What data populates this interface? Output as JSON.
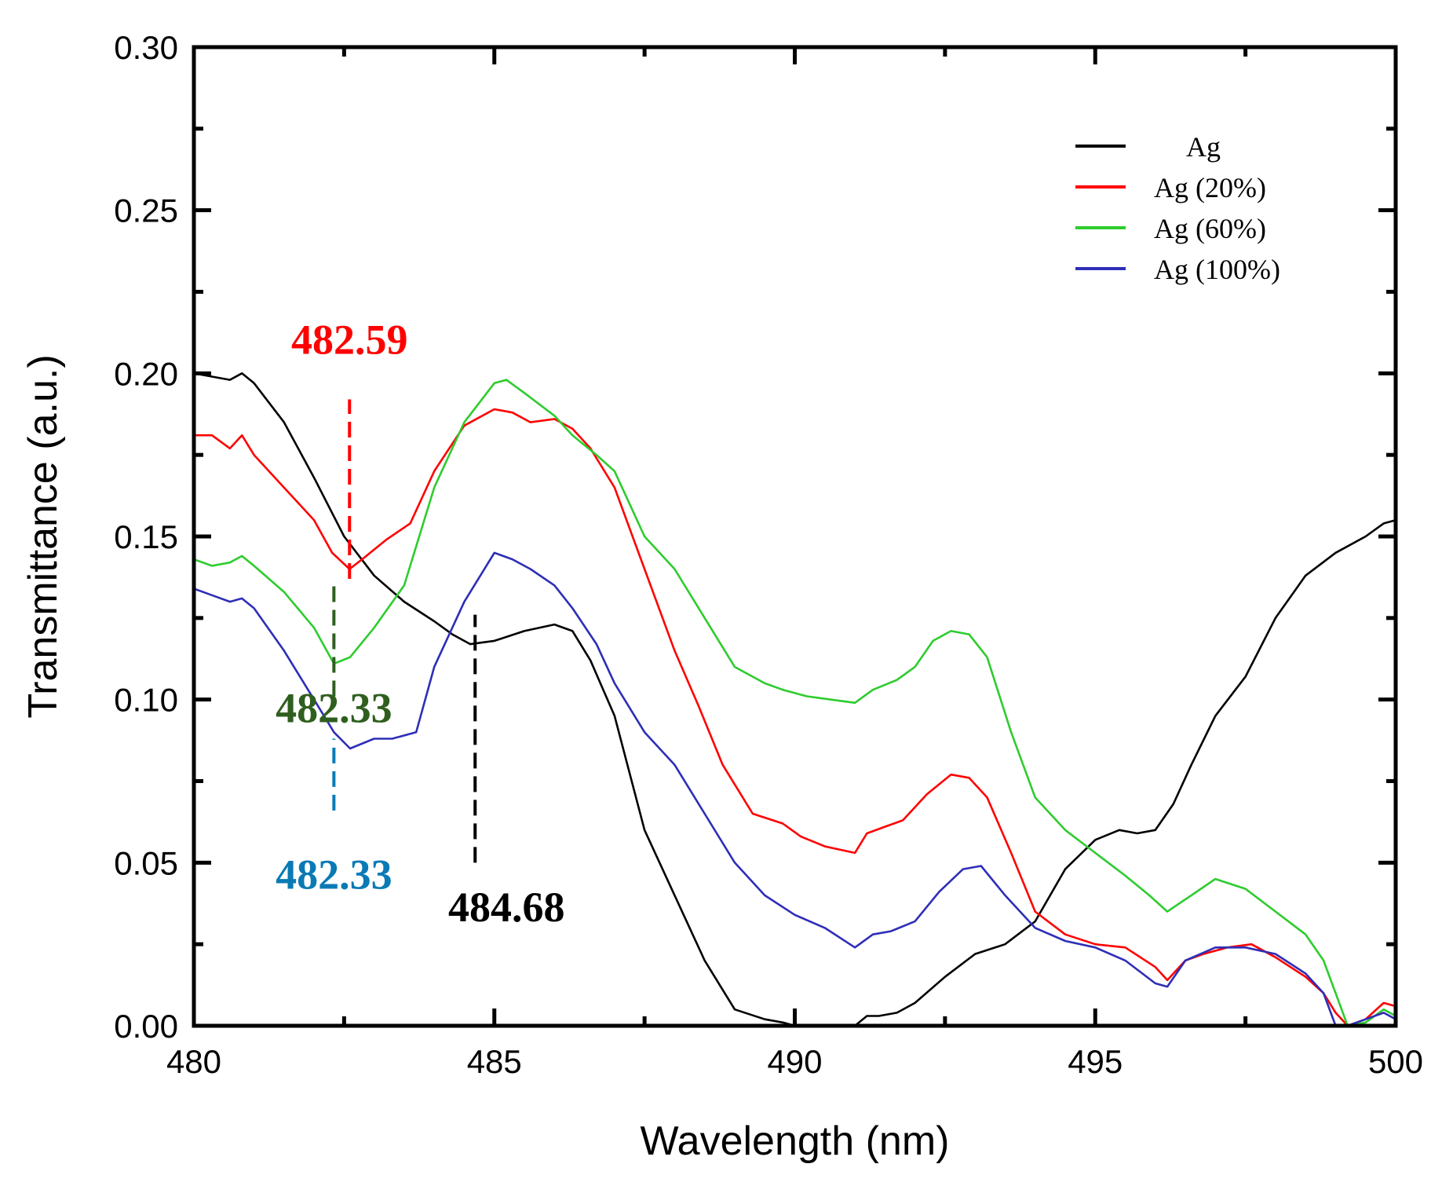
{
  "chart_data": {
    "type": "line",
    "title": "",
    "xlabel": "Wavelength (nm)",
    "ylabel": "Transmittance (a.u.)",
    "xlim": [
      480,
      500
    ],
    "ylim": [
      0.0,
      0.3
    ],
    "x_ticks": [
      480,
      485,
      490,
      495,
      500
    ],
    "x_tick_labels": [
      "480",
      "485",
      "490",
      "495",
      "500"
    ],
    "y_ticks": [
      0.0,
      0.05,
      0.1,
      0.15,
      0.2,
      0.25,
      0.3
    ],
    "y_tick_labels": [
      "0.00",
      "0.05",
      "0.10",
      "0.15",
      "0.20",
      "0.25",
      "0.30"
    ],
    "legend_position": "top-right",
    "series": [
      {
        "name": "Ag",
        "color": "#000000",
        "x": [
          480,
          480.3,
          480.6,
          480.8,
          481,
          481.5,
          482,
          482.5,
          483,
          483.5,
          484,
          484.3,
          484.6,
          485,
          485.5,
          486,
          486.3,
          486.6,
          487,
          487.5,
          488,
          488.5,
          489,
          489.5,
          489.8,
          490,
          490.3,
          490.5,
          491,
          491.2,
          491.4,
          491.7,
          492,
          492.5,
          493,
          493.5,
          494,
          494.5,
          495,
          495.4,
          495.7,
          496,
          496.3,
          496.6,
          497,
          497.5,
          498,
          498.5,
          499,
          499.5,
          499.8,
          500
        ],
        "values": [
          0.2,
          0.199,
          0.198,
          0.2,
          0.197,
          0.185,
          0.168,
          0.15,
          0.138,
          0.13,
          0.124,
          0.12,
          0.117,
          0.118,
          0.121,
          0.123,
          0.121,
          0.112,
          0.095,
          0.06,
          0.04,
          0.02,
          0.005,
          0.002,
          0.001,
          0.0,
          0.0,
          0.0,
          0.0,
          0.003,
          0.003,
          0.004,
          0.007,
          0.015,
          0.022,
          0.025,
          0.032,
          0.048,
          0.057,
          0.06,
          0.059,
          0.06,
          0.068,
          0.08,
          0.095,
          0.107,
          0.125,
          0.138,
          0.145,
          0.15,
          0.154,
          0.155
        ]
      },
      {
        "name": "Ag (20%)",
        "color": "#ff0000",
        "x": [
          480,
          480.3,
          480.6,
          480.8,
          481,
          481.5,
          482,
          482.3,
          482.59,
          482.8,
          483.2,
          483.6,
          484,
          484.5,
          485,
          485.3,
          485.6,
          486,
          486.3,
          486.6,
          487,
          487.5,
          488,
          488.4,
          488.8,
          489.3,
          489.8,
          490.1,
          490.5,
          491,
          491.2,
          491.5,
          491.8,
          492.2,
          492.6,
          492.9,
          493.2,
          493.6,
          494,
          494.5,
          495,
          495.5,
          496,
          496.2,
          496.5,
          496.8,
          497.2,
          497.6,
          498,
          498.5,
          498.8,
          499,
          499.2,
          499.5,
          499.8,
          500
        ],
        "values": [
          0.181,
          0.181,
          0.177,
          0.181,
          0.175,
          0.165,
          0.155,
          0.145,
          0.14,
          0.143,
          0.149,
          0.154,
          0.17,
          0.184,
          0.189,
          0.188,
          0.185,
          0.186,
          0.183,
          0.177,
          0.165,
          0.14,
          0.115,
          0.098,
          0.08,
          0.065,
          0.062,
          0.058,
          0.055,
          0.053,
          0.059,
          0.061,
          0.063,
          0.071,
          0.077,
          0.076,
          0.07,
          0.053,
          0.035,
          0.028,
          0.025,
          0.024,
          0.018,
          0.014,
          0.02,
          0.022,
          0.024,
          0.025,
          0.021,
          0.015,
          0.01,
          0.004,
          0.0,
          0.002,
          0.007,
          0.006
        ]
      },
      {
        "name": "Ag (60%)",
        "color": "#2ecc2e",
        "x": [
          480,
          480.3,
          480.6,
          480.8,
          481,
          481.5,
          482,
          482.33,
          482.6,
          483,
          483.5,
          484,
          484.5,
          485,
          485.2,
          485.5,
          486,
          486.3,
          486.7,
          487,
          487.5,
          488,
          488.5,
          489,
          489.5,
          489.8,
          490.2,
          490.6,
          491,
          491.3,
          491.7,
          492,
          492.3,
          492.6,
          492.9,
          493.2,
          493.6,
          494,
          494.5,
          495,
          495.5,
          495.9,
          496.2,
          496.6,
          497,
          497.5,
          498,
          498.5,
          498.8,
          499,
          499.2,
          499.5,
          499.8,
          500
        ],
        "values": [
          0.143,
          0.141,
          0.142,
          0.144,
          0.141,
          0.133,
          0.122,
          0.111,
          0.113,
          0.122,
          0.135,
          0.165,
          0.185,
          0.197,
          0.198,
          0.194,
          0.187,
          0.181,
          0.175,
          0.17,
          0.15,
          0.14,
          0.125,
          0.11,
          0.105,
          0.103,
          0.101,
          0.1,
          0.099,
          0.103,
          0.106,
          0.11,
          0.118,
          0.121,
          0.12,
          0.113,
          0.09,
          0.07,
          0.06,
          0.053,
          0.046,
          0.04,
          0.035,
          0.04,
          0.045,
          0.042,
          0.035,
          0.028,
          0.02,
          0.01,
          0.0,
          0.001,
          0.005,
          0.003
        ]
      },
      {
        "name": "Ag (100%)",
        "color": "#2e2eb8",
        "x": [
          480,
          480.3,
          480.6,
          480.8,
          481,
          481.5,
          482,
          482.33,
          482.6,
          483,
          483.3,
          483.7,
          484,
          484.5,
          485,
          485.3,
          485.6,
          486,
          486.3,
          486.7,
          487,
          487.5,
          488,
          488.5,
          489,
          489.5,
          490,
          490.5,
          491,
          491.3,
          491.6,
          492,
          492.4,
          492.8,
          493.1,
          493.5,
          494,
          494.5,
          495,
          495.5,
          496,
          496.2,
          496.5,
          497,
          497.5,
          498,
          498.5,
          498.8,
          499,
          499.2,
          499.5,
          499.8,
          500
        ],
        "values": [
          0.134,
          0.132,
          0.13,
          0.131,
          0.128,
          0.115,
          0.1,
          0.09,
          0.085,
          0.088,
          0.088,
          0.09,
          0.11,
          0.13,
          0.145,
          0.143,
          0.14,
          0.135,
          0.128,
          0.117,
          0.105,
          0.09,
          0.08,
          0.065,
          0.05,
          0.04,
          0.034,
          0.03,
          0.024,
          0.028,
          0.029,
          0.032,
          0.041,
          0.048,
          0.049,
          0.04,
          0.03,
          0.026,
          0.024,
          0.02,
          0.013,
          0.012,
          0.02,
          0.024,
          0.024,
          0.022,
          0.016,
          0.01,
          0.0,
          0.0,
          0.002,
          0.004,
          0.002
        ]
      }
    ],
    "annotations": [
      {
        "text": "482.59",
        "color": "#ff0000",
        "x": 482.59,
        "line_y_from": 0.137,
        "line_y_to": 0.192,
        "label_y": 0.206
      },
      {
        "text": "482.33",
        "color": "#2f5f1f",
        "x": 482.33,
        "line_y_from": 0.101,
        "line_y_to": 0.136,
        "label_y": 0.093
      },
      {
        "text": "482.33",
        "color": "#0a7ab5",
        "x": 482.33,
        "line_y_from": 0.066,
        "line_y_to": 0.088,
        "label_y": 0.042
      },
      {
        "text": "484.68",
        "color": "#000000",
        "x": 484.68,
        "line_y_from": 0.05,
        "line_y_to": 0.126,
        "label_y": 0.032
      }
    ]
  }
}
